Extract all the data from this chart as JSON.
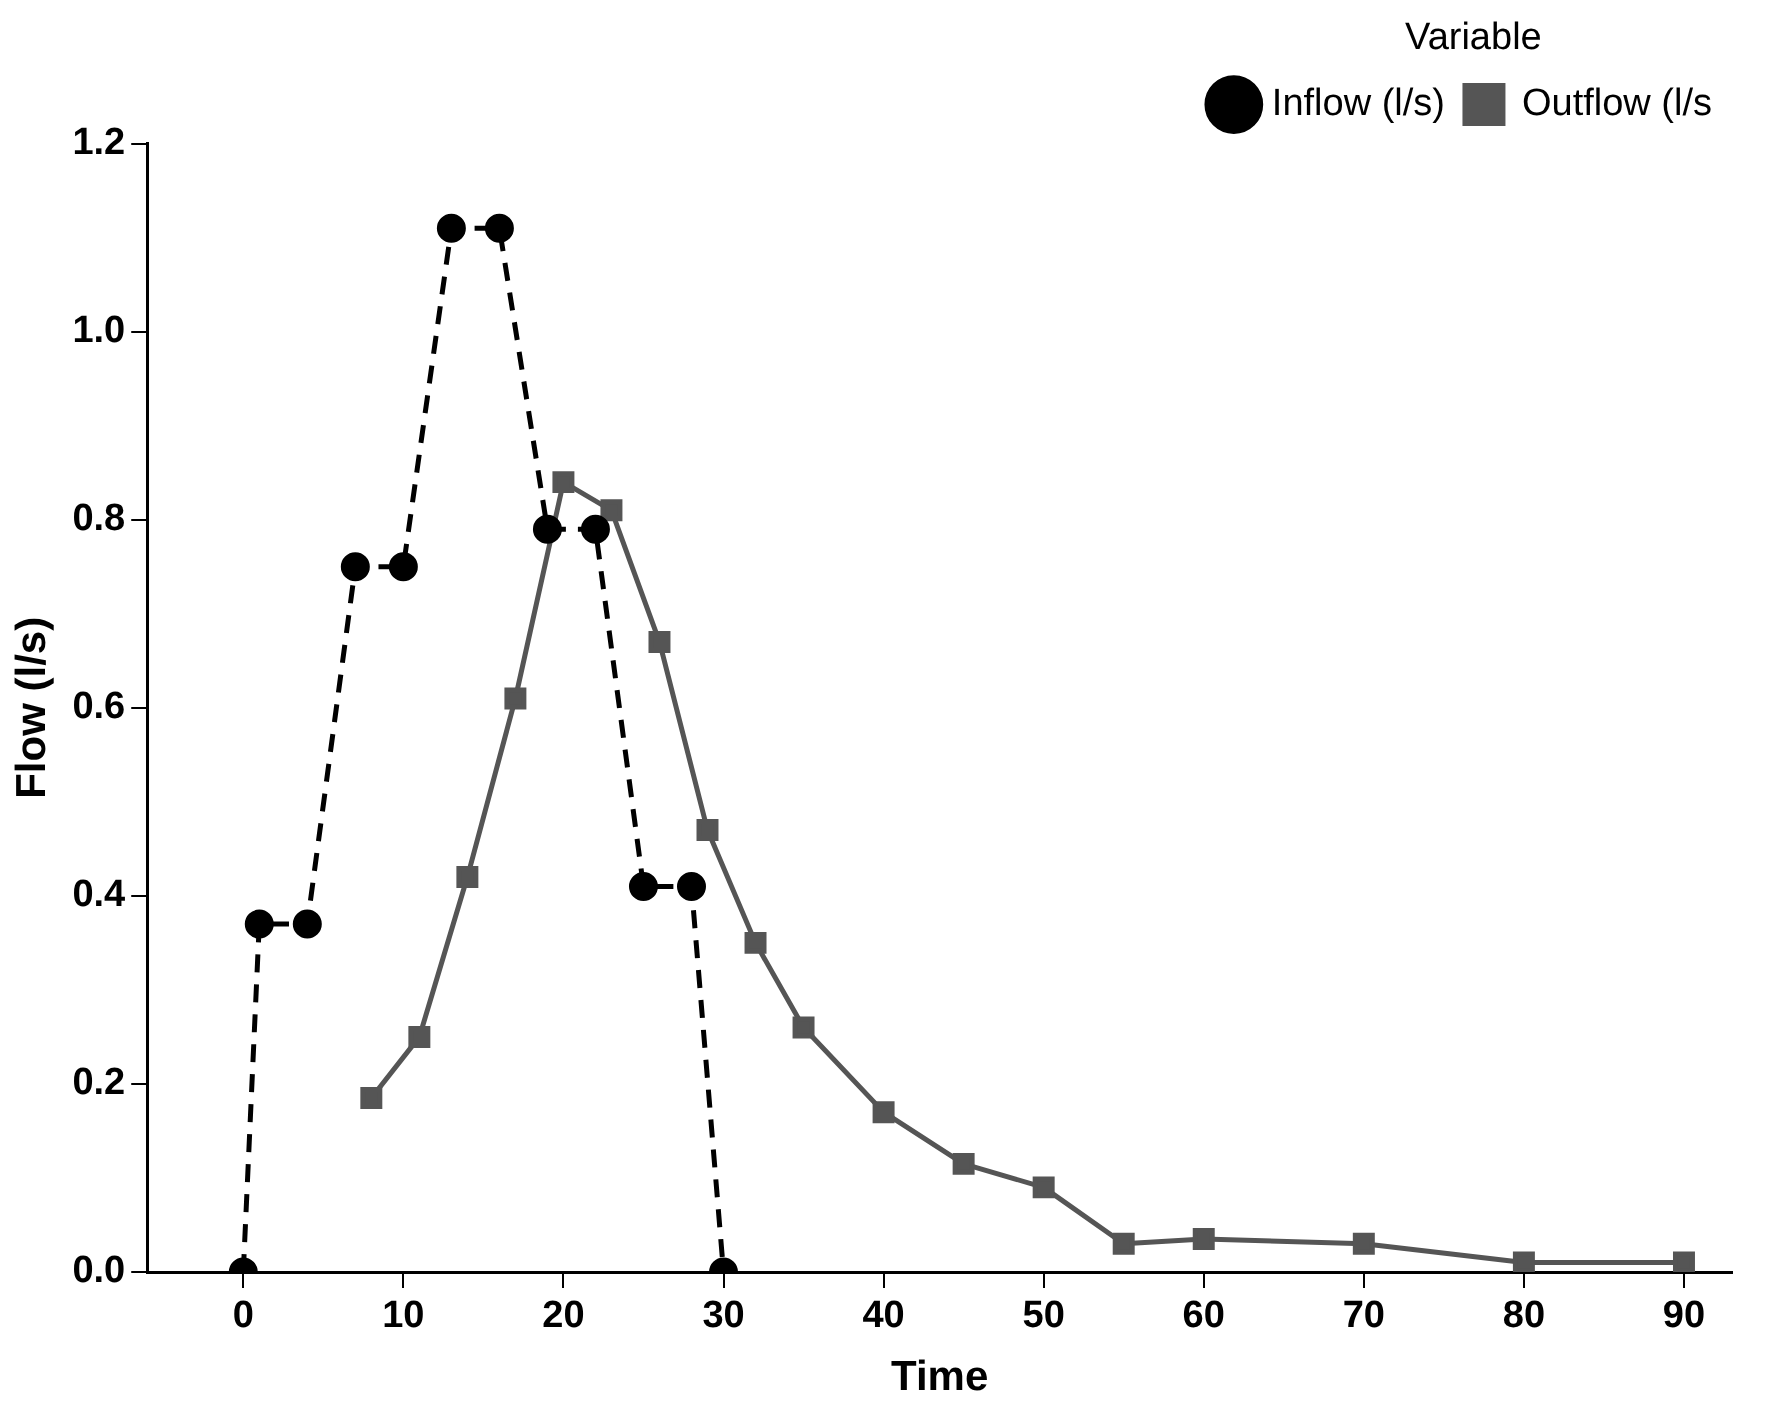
{
  "chart_data": {
    "type": "line",
    "xlabel": "Time",
    "ylabel": "Flow (l/s)",
    "legend_title": "Variable",
    "legend": "top right",
    "grid": false,
    "xlim": [
      -6,
      93
    ],
    "xticks": [
      0,
      10,
      20,
      30,
      40,
      50,
      60,
      70,
      80,
      90
    ],
    "ylim": [
      0,
      1.2
    ],
    "yticks": [
      {
        "value": 0,
        "label": "0.0"
      },
      {
        "value": 0.2,
        "label": "0.2"
      },
      {
        "value": 0.4,
        "label": "0.4"
      },
      {
        "value": 0.6,
        "label": "0.6"
      },
      {
        "value": 0.8,
        "label": "0.8"
      },
      {
        "value": 1,
        "label": "1.0"
      },
      {
        "value": 1.2,
        "label": "1.2"
      }
    ],
    "series": [
      {
        "name": "Inflow (l/s)",
        "color": "#000000",
        "line_style": "dashed",
        "marker": "circle",
        "x": [
          0,
          1,
          4,
          7,
          10,
          13,
          16,
          19,
          22,
          25,
          28,
          30
        ],
        "values": [
          0,
          0.37,
          0.37,
          0.75,
          0.75,
          1.11,
          1.11,
          0.79,
          0.79,
          0.41,
          0.41,
          0
        ]
      },
      {
        "name": "Outflow (l/s",
        "color": "#555555",
        "line_style": "solid",
        "marker": "square",
        "x": [
          8,
          11,
          14,
          17,
          20,
          23,
          26,
          29,
          32,
          35,
          40,
          45,
          50,
          55,
          60,
          70,
          80,
          90
        ],
        "values": [
          0.185,
          0.25,
          0.42,
          0.61,
          0.84,
          0.81,
          0.67,
          0.47,
          0.35,
          0.26,
          0.17,
          0.115,
          0.09,
          0.03,
          0.035,
          0.03,
          0.01,
          0.01
        ]
      }
    ]
  }
}
